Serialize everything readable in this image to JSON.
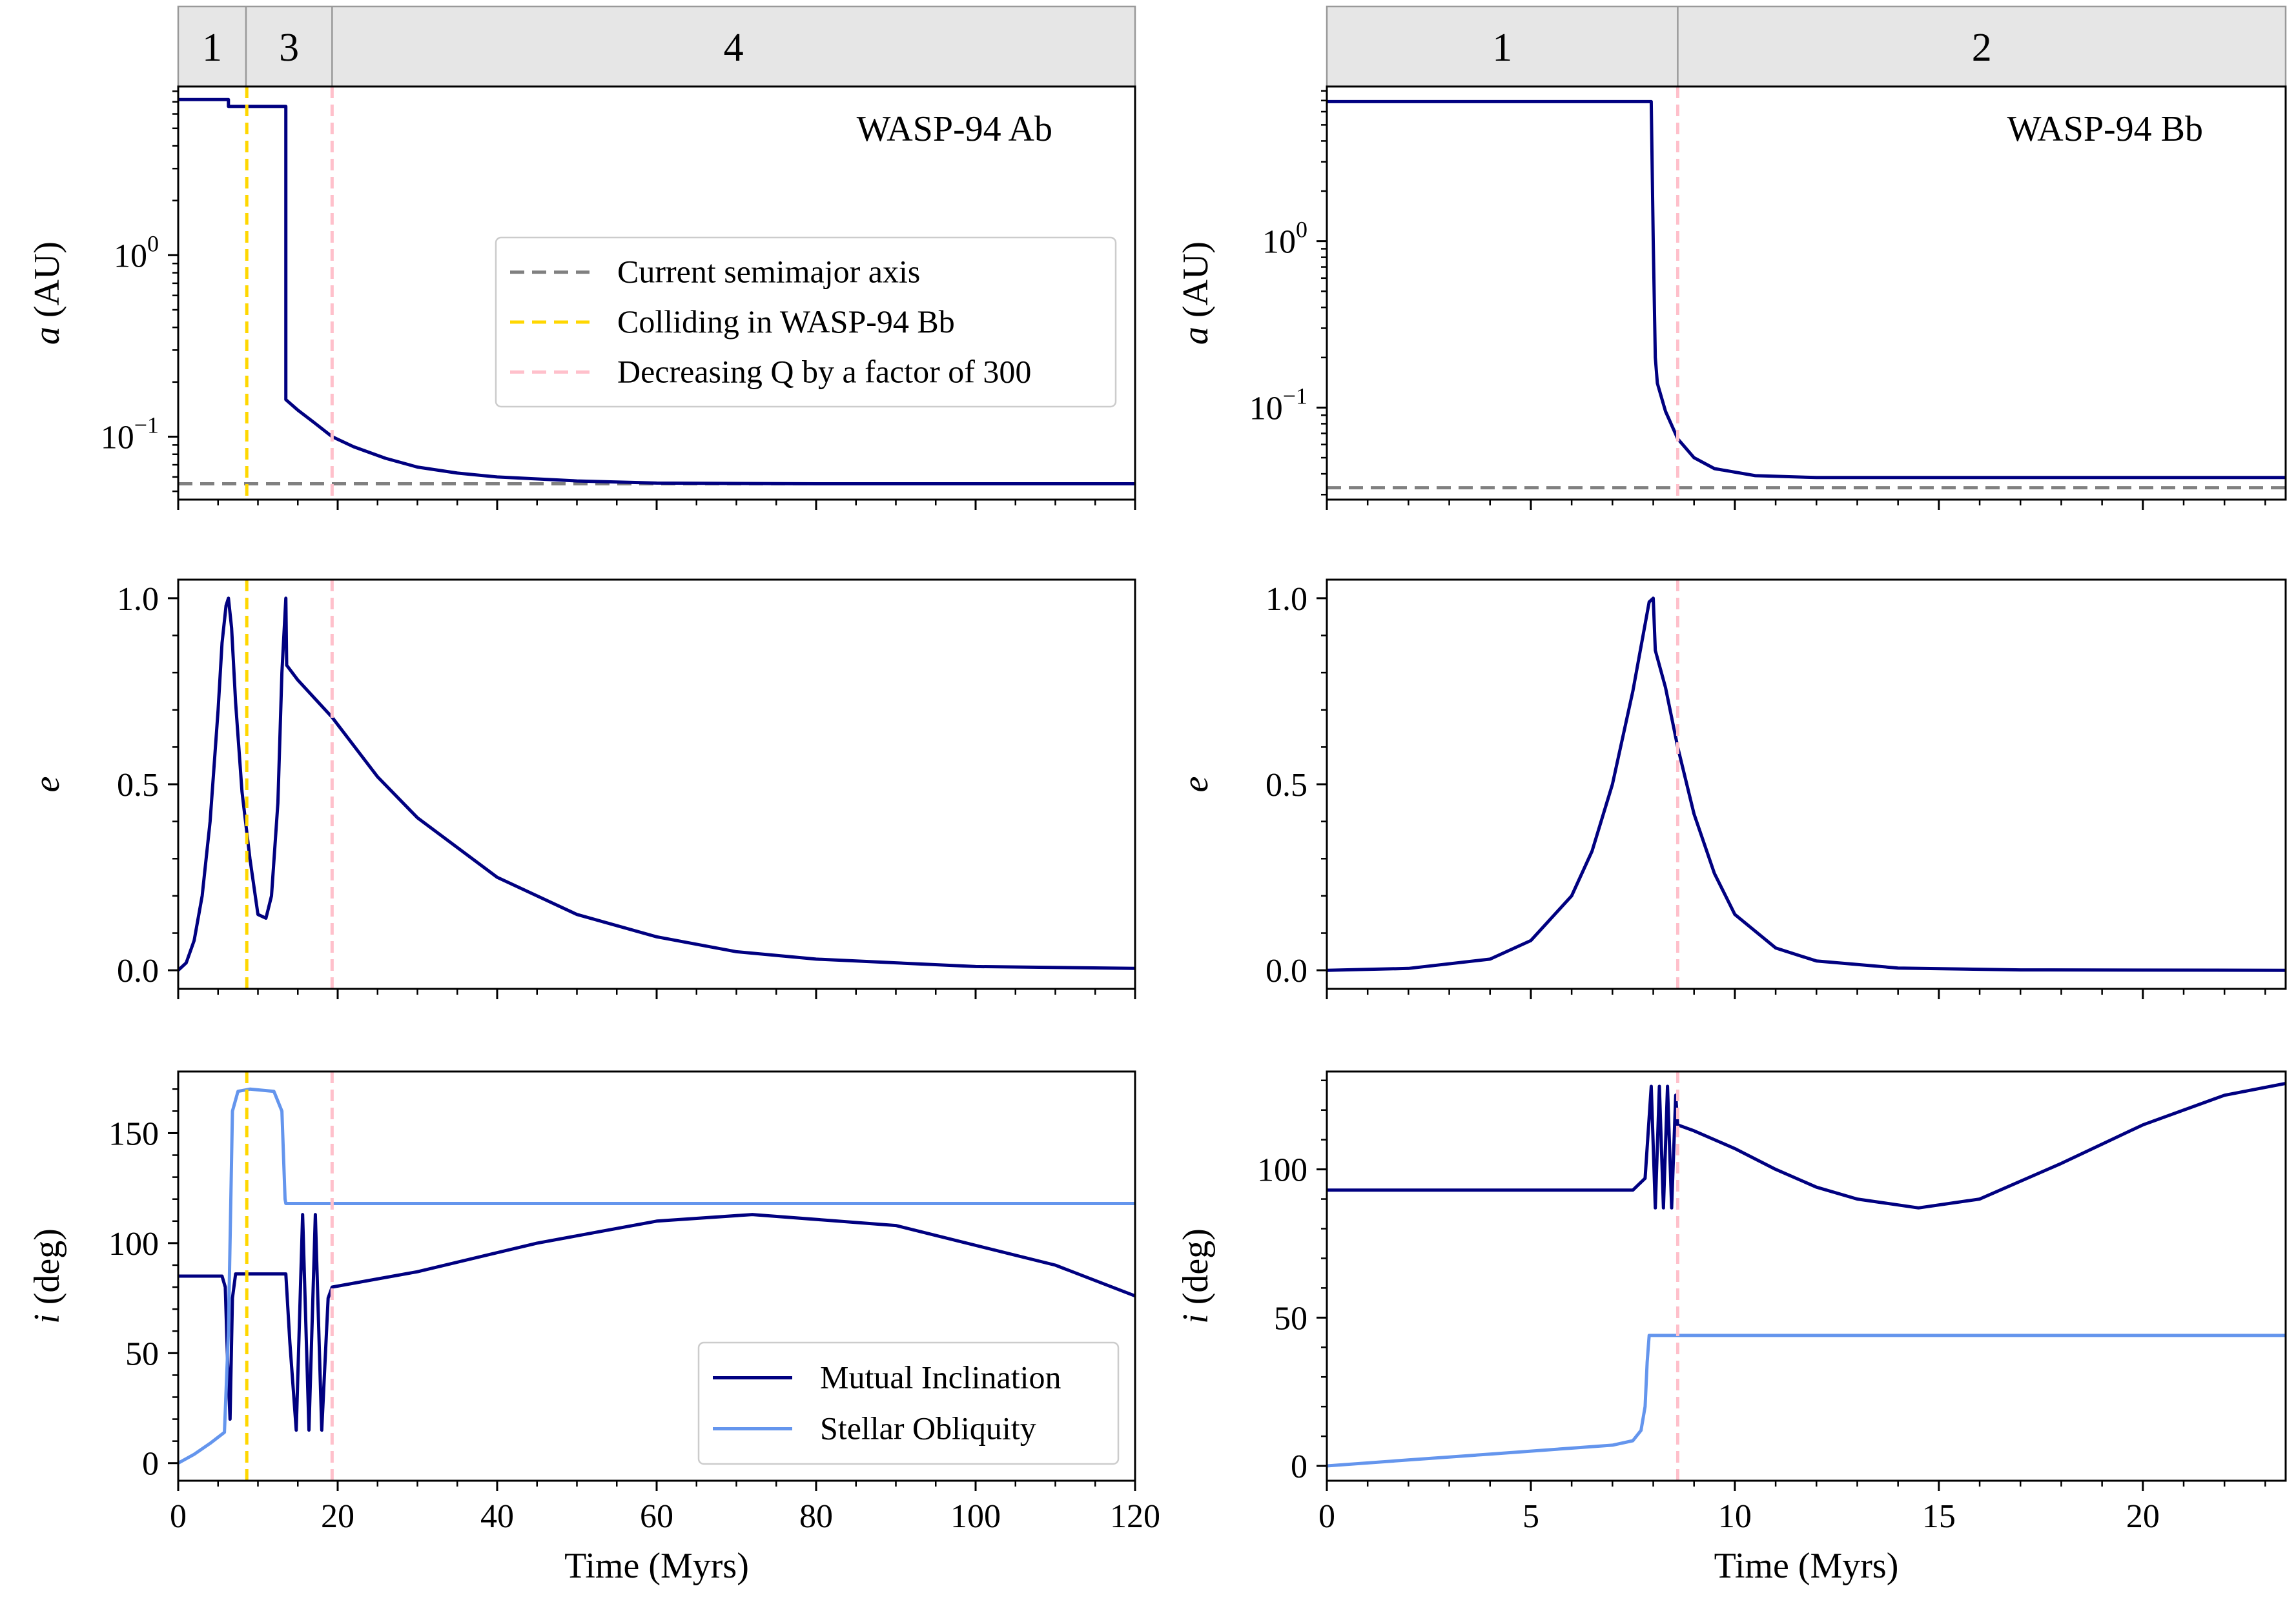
{
  "chart_data": [
    {
      "id": "A_top",
      "type": "line",
      "yscale": "log",
      "title": "WASP-94 Ab",
      "ylabel": "a (AU)",
      "xlabel": "",
      "xlim": [
        0,
        120
      ],
      "ylim": [
        0.045,
        8.5
      ],
      "xticks": [
        0,
        20,
        40,
        60,
        80,
        100,
        120
      ],
      "yticks": [
        {
          "value": 1,
          "base": "10",
          "exp": "0"
        },
        {
          "value": 0.1,
          "base": "10",
          "exp": "−1"
        }
      ],
      "phase_strip": [
        {
          "label": "1",
          "from": 0,
          "to": 8.5
        },
        {
          "label": "3",
          "from": 8.5,
          "to": 19.3
        },
        {
          "label": "4",
          "from": 19.3,
          "to": 120
        }
      ],
      "vlines": [
        {
          "x": 8.6,
          "color": "#FFD700"
        },
        {
          "x": 19.3,
          "color": "#FFC0CB"
        }
      ],
      "hlines": [
        {
          "y": 0.055,
          "color": "#808080"
        }
      ],
      "series": [
        {
          "name": "a",
          "color": "#000080",
          "x": [
            0,
            6.3,
            6.3,
            13.5,
            13.5,
            15,
            17,
            19.3,
            22,
            26,
            30,
            35,
            40,
            50,
            60,
            80,
            100,
            120
          ],
          "y": [
            7.2,
            7.2,
            6.6,
            6.6,
            0.16,
            0.14,
            0.12,
            0.1,
            0.088,
            0.076,
            0.068,
            0.063,
            0.06,
            0.057,
            0.0555,
            0.055,
            0.055,
            0.055
          ]
        }
      ],
      "legend": {
        "position": "center-right",
        "entries": [
          {
            "label": "Current semimajor axis",
            "color": "#808080",
            "style": "dashed"
          },
          {
            "label": "Colliding in WASP-94 Bb",
            "color": "#FFD700",
            "style": "dashed"
          },
          {
            "label": "Decreasing Q by a factor of 300",
            "color": "#FFC0CB",
            "style": "dashed"
          }
        ]
      }
    },
    {
      "id": "A_mid",
      "type": "line",
      "yscale": "linear",
      "ylabel": "e",
      "xlabel": "",
      "xlim": [
        0,
        120
      ],
      "ylim": [
        -0.05,
        1.05
      ],
      "xticks": [
        0,
        20,
        40,
        60,
        80,
        100,
        120
      ],
      "yticks": [
        0.0,
        0.5,
        1.0
      ],
      "ytick_labels": [
        "0.0",
        "0.5",
        "1.0"
      ],
      "vlines": [
        {
          "x": 8.6,
          "color": "#FFD700"
        },
        {
          "x": 19.3,
          "color": "#FFC0CB"
        }
      ],
      "series": [
        {
          "name": "e",
          "color": "#000080",
          "x": [
            0,
            1,
            2,
            3,
            4,
            5,
            5.5,
            6,
            6.3,
            6.7,
            7.2,
            8,
            9,
            10,
            11,
            11.7,
            12.5,
            13,
            13.5,
            13.6,
            15,
            19.3,
            25,
            30,
            40,
            50,
            60,
            70,
            80,
            100,
            120
          ],
          "y": [
            0.0,
            0.02,
            0.08,
            0.2,
            0.4,
            0.7,
            0.88,
            0.98,
            1.0,
            0.92,
            0.72,
            0.48,
            0.3,
            0.15,
            0.14,
            0.2,
            0.45,
            0.8,
            1.0,
            0.82,
            0.78,
            0.68,
            0.52,
            0.41,
            0.25,
            0.15,
            0.09,
            0.05,
            0.03,
            0.01,
            0.005
          ]
        }
      ]
    },
    {
      "id": "A_bot",
      "type": "line",
      "yscale": "linear",
      "ylabel": "i (deg)",
      "xlabel": "Time (Myrs)",
      "xlim": [
        0,
        120
      ],
      "ylim": [
        -8,
        178
      ],
      "xticks": [
        0,
        20,
        40,
        60,
        80,
        100,
        120
      ],
      "yticks": [
        0,
        50,
        100,
        150
      ],
      "vlines": [
        {
          "x": 8.6,
          "color": "#FFD700"
        },
        {
          "x": 19.3,
          "color": "#FFC0CB"
        }
      ],
      "series": [
        {
          "name": "Mutual Inclination",
          "color": "#000080",
          "x": [
            0,
            5.5,
            5.9,
            6.2,
            6.5,
            6.8,
            7.2,
            13.5,
            14,
            14.8,
            15.6,
            16.4,
            17.2,
            18,
            18.8,
            19.3,
            30,
            45,
            60,
            72,
            90,
            110,
            120
          ],
          "y": [
            85,
            85,
            80,
            45,
            20,
            75,
            86,
            86,
            55,
            15,
            113,
            15,
            113,
            15,
            75,
            80,
            87,
            100,
            110,
            113,
            108,
            90,
            76
          ]
        },
        {
          "name": "Stellar Obliquity",
          "color": "#6495ED",
          "x": [
            0,
            2,
            4,
            5.8,
            6.3,
            6.8,
            7.5,
            9,
            12,
            13,
            13.4,
            13.5,
            40,
            80,
            120
          ],
          "y": [
            0,
            4,
            9,
            14,
            60,
            160,
            169,
            170,
            169,
            160,
            120,
            118,
            118,
            118,
            118
          ]
        }
      ],
      "legend": {
        "position": "bottom-right",
        "entries": [
          {
            "label": "Mutual Inclination",
            "color": "#000080",
            "style": "solid"
          },
          {
            "label": "Stellar Obliquity",
            "color": "#6495ED",
            "style": "solid"
          }
        ]
      }
    },
    {
      "id": "B_top",
      "type": "line",
      "yscale": "log",
      "title": "WASP-94 Bb",
      "ylabel": "a (AU)",
      "xlabel": "",
      "xlim": [
        0,
        23.5
      ],
      "ylim": [
        0.028,
        8.5
      ],
      "xticks": [
        0,
        5,
        10,
        15,
        20
      ],
      "yticks": [
        {
          "value": 1,
          "base": "10",
          "exp": "0"
        },
        {
          "value": 0.1,
          "base": "10",
          "exp": "−1"
        }
      ],
      "phase_strip": [
        {
          "label": "1",
          "from": 0,
          "to": 8.6
        },
        {
          "label": "2",
          "from": 8.6,
          "to": 23.5
        }
      ],
      "vlines": [
        {
          "x": 8.6,
          "color": "#FFC0CB"
        }
      ],
      "hlines": [
        {
          "y": 0.033,
          "color": "#808080"
        }
      ],
      "series": [
        {
          "name": "a",
          "color": "#000080",
          "x": [
            0,
            7.9,
            7.95,
            8.0,
            8.05,
            8.1,
            8.3,
            8.6,
            9.0,
            9.5,
            10.5,
            12,
            15,
            20,
            23.5
          ],
          "y": [
            6.9,
            6.9,
            6.9,
            1.0,
            0.2,
            0.14,
            0.095,
            0.065,
            0.05,
            0.043,
            0.039,
            0.038,
            0.038,
            0.038,
            0.038
          ]
        }
      ]
    },
    {
      "id": "B_mid",
      "type": "line",
      "yscale": "linear",
      "ylabel": "e",
      "xlabel": "",
      "xlim": [
        0,
        23.5
      ],
      "ylim": [
        -0.05,
        1.05
      ],
      "xticks": [
        0,
        5,
        10,
        15,
        20
      ],
      "yticks": [
        0.0,
        0.5,
        1.0
      ],
      "ytick_labels": [
        "0.0",
        "0.5",
        "1.0"
      ],
      "vlines": [
        {
          "x": 8.6,
          "color": "#FFC0CB"
        }
      ],
      "series": [
        {
          "name": "e",
          "color": "#000080",
          "x": [
            0,
            2,
            4,
            5,
            6,
            6.5,
            7,
            7.5,
            7.9,
            8.0,
            8.05,
            8.3,
            8.6,
            9,
            9.5,
            10,
            11,
            12,
            14,
            17,
            23.5
          ],
          "y": [
            0.0,
            0.005,
            0.03,
            0.08,
            0.2,
            0.32,
            0.5,
            0.75,
            0.99,
            1.0,
            0.86,
            0.76,
            0.6,
            0.42,
            0.26,
            0.15,
            0.06,
            0.025,
            0.006,
            0.001,
            0.0
          ]
        }
      ]
    },
    {
      "id": "B_bot",
      "type": "line",
      "yscale": "linear",
      "ylabel": "i (deg)",
      "xlabel": "Time (Myrs)",
      "xlim": [
        0,
        23.5
      ],
      "ylim": [
        -5,
        133
      ],
      "xticks": [
        0,
        5,
        10,
        15,
        20
      ],
      "yticks": [
        0,
        50,
        100
      ],
      "vlines": [
        {
          "x": 8.6,
          "color": "#FFC0CB"
        }
      ],
      "series": [
        {
          "name": "Mutual Inclination",
          "color": "#000080",
          "x": [
            0,
            7.5,
            7.8,
            7.95,
            8.05,
            8.15,
            8.25,
            8.35,
            8.45,
            8.55,
            8.6,
            9,
            10,
            11,
            12,
            13,
            14.5,
            16,
            18,
            20,
            22,
            23.5
          ],
          "y": [
            93,
            93,
            97,
            128,
            87,
            128,
            87,
            128,
            87,
            125,
            115,
            113,
            107,
            100,
            94,
            90,
            87,
            90,
            102,
            115,
            125,
            129
          ]
        },
        {
          "name": "Stellar Obliquity",
          "color": "#6495ED",
          "x": [
            0,
            2,
            4,
            6,
            7,
            7.5,
            7.7,
            7.8,
            7.85,
            7.9,
            8.0,
            10,
            15,
            20,
            23.5
          ],
          "y": [
            0,
            2,
            4,
            6,
            7,
            8.5,
            12,
            20,
            35,
            44,
            44,
            44,
            44,
            44,
            44
          ]
        }
      ]
    }
  ]
}
